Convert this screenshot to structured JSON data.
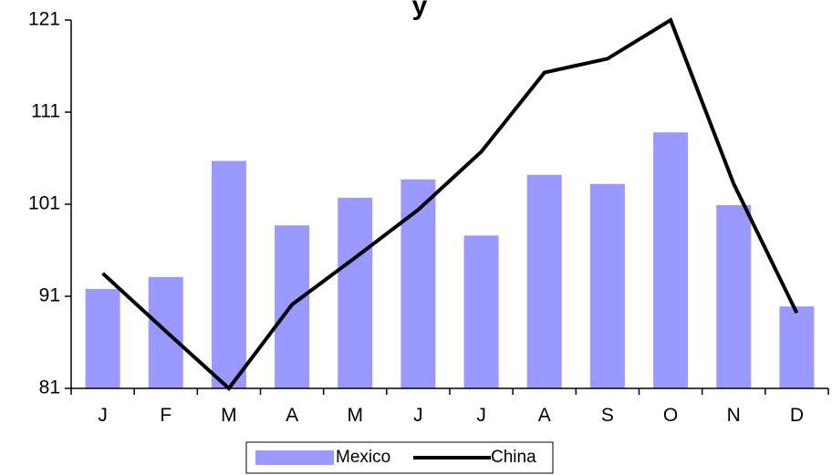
{
  "chart_data": {
    "type": "bar",
    "title": "y",
    "categories": [
      "J",
      "F",
      "M",
      "A",
      "M",
      "J",
      "J",
      "A",
      "S",
      "O",
      "N",
      "D"
    ],
    "ylim": [
      81,
      121
    ],
    "yticks": [
      81,
      91,
      101,
      111,
      121
    ],
    "grid": false,
    "legend_position": "bottom",
    "series": [
      {
        "name": "Mexico",
        "type": "bar",
        "color": "#9999FF",
        "values": [
          91.8,
          93.1,
          105.7,
          98.7,
          101.7,
          103.7,
          97.6,
          104.2,
          103.2,
          108.8,
          100.9,
          89.9
        ]
      },
      {
        "name": "China",
        "type": "line",
        "color": "#000000",
        "values": [
          93.5,
          87.2,
          81,
          90.1,
          95.2,
          100.4,
          106.7,
          115.3,
          116.8,
          121,
          103.2,
          89.2
        ]
      }
    ]
  }
}
